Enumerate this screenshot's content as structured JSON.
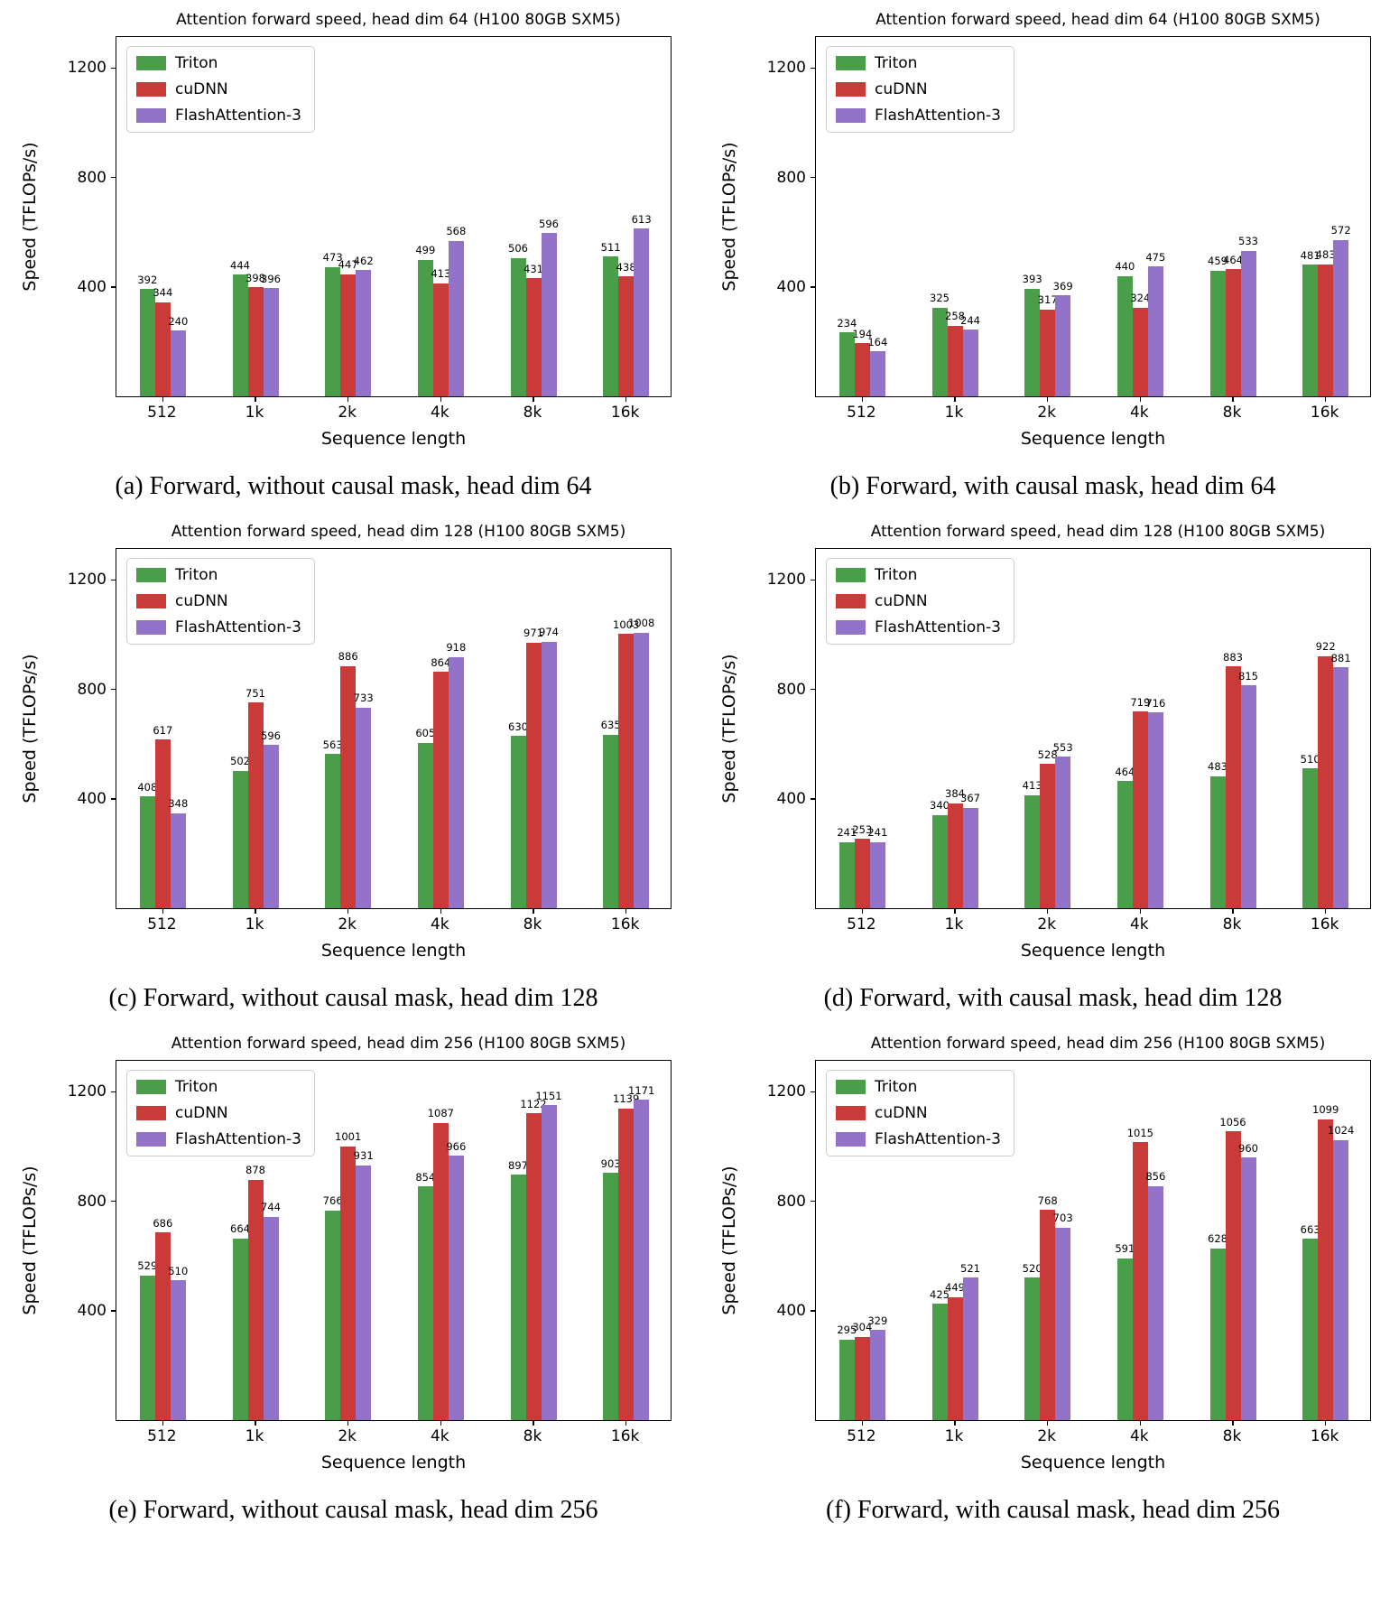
{
  "figure": {
    "series_colors": [
      "#4a9e4a",
      "#c93a38",
      "#9372c9"
    ],
    "yticks": [
      400,
      800,
      1200
    ],
    "categories": [
      "512",
      "1k",
      "2k",
      "4k",
      "8k",
      "16k"
    ],
    "xlabel": "Sequence length",
    "ylabel": "Speed (TFLOPs/s)"
  },
  "chart_data": [
    {
      "type": "bar",
      "title": "Attention forward speed, head dim 64 (H100 80GB SXM5)",
      "caption": "(a) Forward, without causal mask, head dim 64",
      "xlabel": "Sequence length",
      "ylabel": "Speed (TFLOPs/s)",
      "categories": [
        "512",
        "1k",
        "2k",
        "4k",
        "8k",
        "16k"
      ],
      "ylim": [
        0,
        1320
      ],
      "legend_position": "upper left",
      "grid": false,
      "series": [
        {
          "name": "Triton",
          "values": [
            392,
            444,
            473,
            499,
            506,
            511
          ]
        },
        {
          "name": "cuDNN",
          "values": [
            344,
            398,
            447,
            413,
            431,
            438
          ]
        },
        {
          "name": "FlashAttention-3",
          "values": [
            240,
            396,
            462,
            568,
            596,
            613
          ]
        }
      ]
    },
    {
      "type": "bar",
      "title": "Attention forward speed, head dim 64 (H100 80GB SXM5)",
      "caption": "(b) Forward, with causal mask, head dim 64",
      "xlabel": "Sequence length",
      "ylabel": "Speed (TFLOPs/s)",
      "categories": [
        "512",
        "1k",
        "2k",
        "4k",
        "8k",
        "16k"
      ],
      "ylim": [
        0,
        1320
      ],
      "legend_position": "upper left",
      "grid": false,
      "series": [
        {
          "name": "Triton",
          "values": [
            234,
            325,
            393,
            440,
            459,
            481
          ]
        },
        {
          "name": "cuDNN",
          "values": [
            194,
            258,
            317,
            324,
            464,
            483
          ]
        },
        {
          "name": "FlashAttention-3",
          "values": [
            164,
            244,
            369,
            475,
            533,
            572
          ]
        }
      ]
    },
    {
      "type": "bar",
      "title": "Attention forward speed, head dim 128 (H100 80GB SXM5)",
      "caption": "(c) Forward, without causal mask, head dim 128",
      "xlabel": "Sequence length",
      "ylabel": "Speed (TFLOPs/s)",
      "categories": [
        "512",
        "1k",
        "2k",
        "4k",
        "8k",
        "16k"
      ],
      "ylim": [
        0,
        1320
      ],
      "legend_position": "upper left",
      "grid": false,
      "series": [
        {
          "name": "Triton",
          "values": [
            408,
            502,
            563,
            605,
            630,
            635
          ]
        },
        {
          "name": "cuDNN",
          "values": [
            617,
            751,
            886,
            864,
            971,
            1003
          ]
        },
        {
          "name": "FlashAttention-3",
          "values": [
            348,
            596,
            733,
            918,
            974,
            1008
          ]
        }
      ]
    },
    {
      "type": "bar",
      "title": "Attention forward speed, head dim 128 (H100 80GB SXM5)",
      "caption": "(d) Forward, with causal mask, head dim 128",
      "xlabel": "Sequence length",
      "ylabel": "Speed (TFLOPs/s)",
      "categories": [
        "512",
        "1k",
        "2k",
        "4k",
        "8k",
        "16k"
      ],
      "ylim": [
        0,
        1320
      ],
      "legend_position": "upper left",
      "grid": false,
      "series": [
        {
          "name": "Triton",
          "values": [
            241,
            340,
            413,
            464,
            483,
            510
          ]
        },
        {
          "name": "cuDNN",
          "values": [
            253,
            384,
            528,
            719,
            883,
            922
          ]
        },
        {
          "name": "FlashAttention-3",
          "values": [
            241,
            367,
            553,
            716,
            815,
            881
          ]
        }
      ]
    },
    {
      "type": "bar",
      "title": "Attention forward speed, head dim 256 (H100 80GB SXM5)",
      "caption": "(e) Forward, without causal mask, head dim 256",
      "xlabel": "Sequence length",
      "ylabel": "Speed (TFLOPs/s)",
      "categories": [
        "512",
        "1k",
        "2k",
        "4k",
        "8k",
        "16k"
      ],
      "ylim": [
        0,
        1320
      ],
      "legend_position": "upper left",
      "grid": false,
      "series": [
        {
          "name": "Triton",
          "values": [
            529,
            664,
            766,
            854,
            897,
            903
          ]
        },
        {
          "name": "cuDNN",
          "values": [
            686,
            878,
            1001,
            1087,
            1122,
            1139
          ]
        },
        {
          "name": "FlashAttention-3",
          "values": [
            510,
            744,
            931,
            966,
            1151,
            1171
          ]
        }
      ]
    },
    {
      "type": "bar",
      "title": "Attention forward speed, head dim 256 (H100 80GB SXM5)",
      "caption": "(f) Forward, with causal mask, head dim 256",
      "xlabel": "Sequence length",
      "ylabel": "Speed (TFLOPs/s)",
      "categories": [
        "512",
        "1k",
        "2k",
        "4k",
        "8k",
        "16k"
      ],
      "ylim": [
        0,
        1320
      ],
      "legend_position": "upper left",
      "grid": false,
      "series": [
        {
          "name": "Triton",
          "values": [
            295,
            425,
            520,
            591,
            628,
            663
          ]
        },
        {
          "name": "cuDNN",
          "values": [
            304,
            449,
            768,
            1015,
            1056,
            1099
          ]
        },
        {
          "name": "FlashAttention-3",
          "values": [
            329,
            521,
            703,
            856,
            960,
            1024
          ]
        }
      ]
    }
  ]
}
